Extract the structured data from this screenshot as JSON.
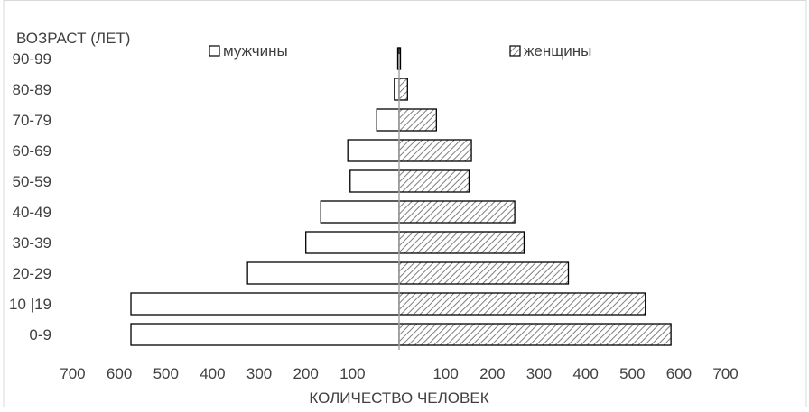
{
  "chart_data": {
    "type": "bar",
    "orientation": "horizontal",
    "layout": "population-pyramid",
    "categories": [
      "0-9",
      "10 |19",
      "20-29",
      "30-39",
      "40-49",
      "50-59",
      "60-69",
      "70-79",
      "80-89",
      "90-99"
    ],
    "series": [
      {
        "name": "мужчины",
        "side": "left",
        "fill": "white",
        "values": [
          575,
          575,
          325,
          200,
          168,
          105,
          110,
          48,
          10,
          2
        ]
      },
      {
        "name": "женщины",
        "side": "right",
        "fill": "hatched",
        "values": [
          583,
          528,
          363,
          268,
          248,
          150,
          155,
          80,
          18,
          2
        ]
      }
    ],
    "ylabel": "ВОЗРАСТ (ЛЕТ)",
    "xlabel": "КОЛИЧЕСТВО ЧЕЛОВЕК",
    "x_ticks_left": [
      "700",
      "600",
      "500",
      "400",
      "300",
      "200",
      "100"
    ],
    "x_ticks_right": [
      "100",
      "200",
      "300",
      "400",
      "500",
      "600",
      "700"
    ],
    "xlim": [
      -700,
      700
    ],
    "grid": false,
    "legend_position": "top",
    "colors": {
      "bar_edge": "#000000",
      "hatch": "#7f7f7f",
      "axis": "#a6a6a6",
      "text": "#404040",
      "frame": "#d9d9d9"
    }
  }
}
